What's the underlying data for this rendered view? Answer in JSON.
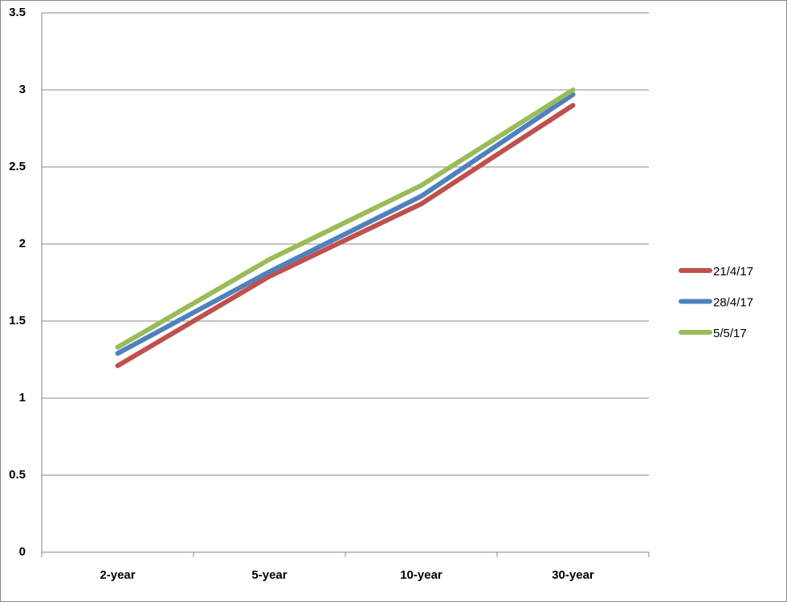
{
  "chart_data": {
    "type": "line",
    "categories": [
      "2-year",
      "5-year",
      "10-year",
      "30-year"
    ],
    "series": [
      {
        "name": "21/4/17",
        "color": "#c0504d",
        "values": [
          1.21,
          1.79,
          2.26,
          2.9
        ]
      },
      {
        "name": "28/4/17",
        "color": "#4f81bd",
        "values": [
          1.29,
          1.82,
          2.31,
          2.97
        ]
      },
      {
        "name": "5/5/17",
        "color": "#9bbb59",
        "values": [
          1.33,
          1.9,
          2.38,
          3.0
        ]
      }
    ],
    "ylim": [
      0,
      3.5
    ],
    "yticks": [
      0,
      0.5,
      1,
      1.5,
      2,
      2.5,
      3,
      3.5
    ],
    "grid": true,
    "legend": "right"
  }
}
